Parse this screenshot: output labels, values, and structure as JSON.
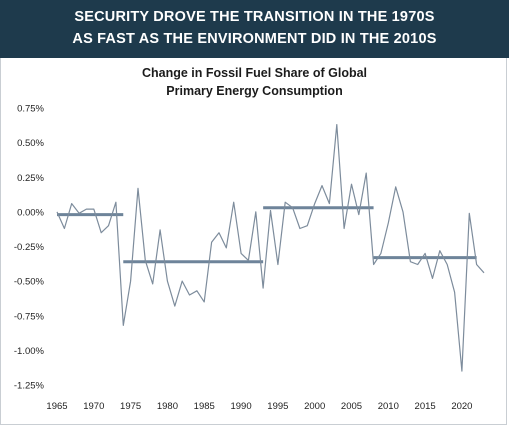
{
  "banner": {
    "line1": "SECURITY DROVE THE TRANSITION IN THE 1970S",
    "line2": "AS FAST AS THE ENVIRONMENT DID IN THE 2010S"
  },
  "chart_data": {
    "type": "line",
    "title_line1": "Change in Fossil Fuel Share of Global",
    "title_line2": "Primary Energy Consumption",
    "xlabel": "",
    "ylabel": "",
    "xlim": [
      1965,
      2023
    ],
    "ylim": [
      -1.25,
      0.75
    ],
    "grid": false,
    "x_ticks": [
      1965,
      1970,
      1975,
      1980,
      1985,
      1990,
      1995,
      2000,
      2005,
      2010,
      2015,
      2020
    ],
    "x_tick_labels": [
      "1965",
      "1970",
      "1975",
      "1980",
      "1985",
      "1990",
      "1995",
      "2000",
      "2005",
      "2010",
      "2015",
      "2020"
    ],
    "y_ticks": [
      0.75,
      0.5,
      0.25,
      0.0,
      -0.25,
      -0.5,
      -0.75,
      -1.0,
      -1.25
    ],
    "y_tick_labels": [
      "0.75%",
      "0.50%",
      "0.25%",
      "0.00%",
      "-0.25%",
      "-0.50%",
      "-0.75%",
      "-1.00%",
      "-1.25%"
    ],
    "colors": {
      "line": "#7d8c9c",
      "average": "#6e849a"
    },
    "series": [
      {
        "x": [
          1965,
          1966,
          1967,
          1968,
          1969,
          1970,
          1971,
          1972,
          1973,
          1974,
          1975,
          1976,
          1977,
          1978,
          1979,
          1980,
          1981,
          1982,
          1983,
          1984,
          1985,
          1986,
          1987,
          1988,
          1989,
          1990,
          1991,
          1992,
          1993,
          1994,
          1995,
          1996,
          1997,
          1998,
          1999,
          2000,
          2001,
          2002,
          2003,
          2004,
          2005,
          2006,
          2007,
          2008,
          2009,
          2010,
          2011,
          2012,
          2013,
          2014,
          2015,
          2016,
          2017,
          2018,
          2019,
          2020,
          2021,
          2022,
          2023
        ],
        "values": [
          0.0,
          -0.12,
          0.06,
          -0.01,
          0.02,
          0.02,
          -0.15,
          -0.1,
          0.07,
          -0.82,
          -0.5,
          0.17,
          -0.35,
          -0.52,
          -0.13,
          -0.5,
          -0.68,
          -0.5,
          -0.6,
          -0.57,
          -0.65,
          -0.22,
          -0.15,
          -0.26,
          0.07,
          -0.3,
          -0.35,
          0.0,
          -0.55,
          0.01,
          -0.38,
          0.07,
          0.03,
          -0.12,
          -0.1,
          0.06,
          0.19,
          0.06,
          0.63,
          -0.12,
          0.2,
          -0.02,
          0.28,
          -0.38,
          -0.3,
          -0.08,
          0.18,
          0.0,
          -0.36,
          -0.38,
          -0.3,
          -0.48,
          -0.28,
          -0.38,
          -0.58,
          -1.15,
          -0.01,
          -0.38,
          -0.44
        ]
      }
    ],
    "averages": [
      {
        "x_start": 1965,
        "x_end": 1974,
        "value": -0.02
      },
      {
        "x_start": 1974,
        "x_end": 1993,
        "value": -0.36
      },
      {
        "x_start": 1993,
        "x_end": 2008,
        "value": 0.03
      },
      {
        "x_start": 2008,
        "x_end": 2022,
        "value": -0.33
      }
    ]
  }
}
